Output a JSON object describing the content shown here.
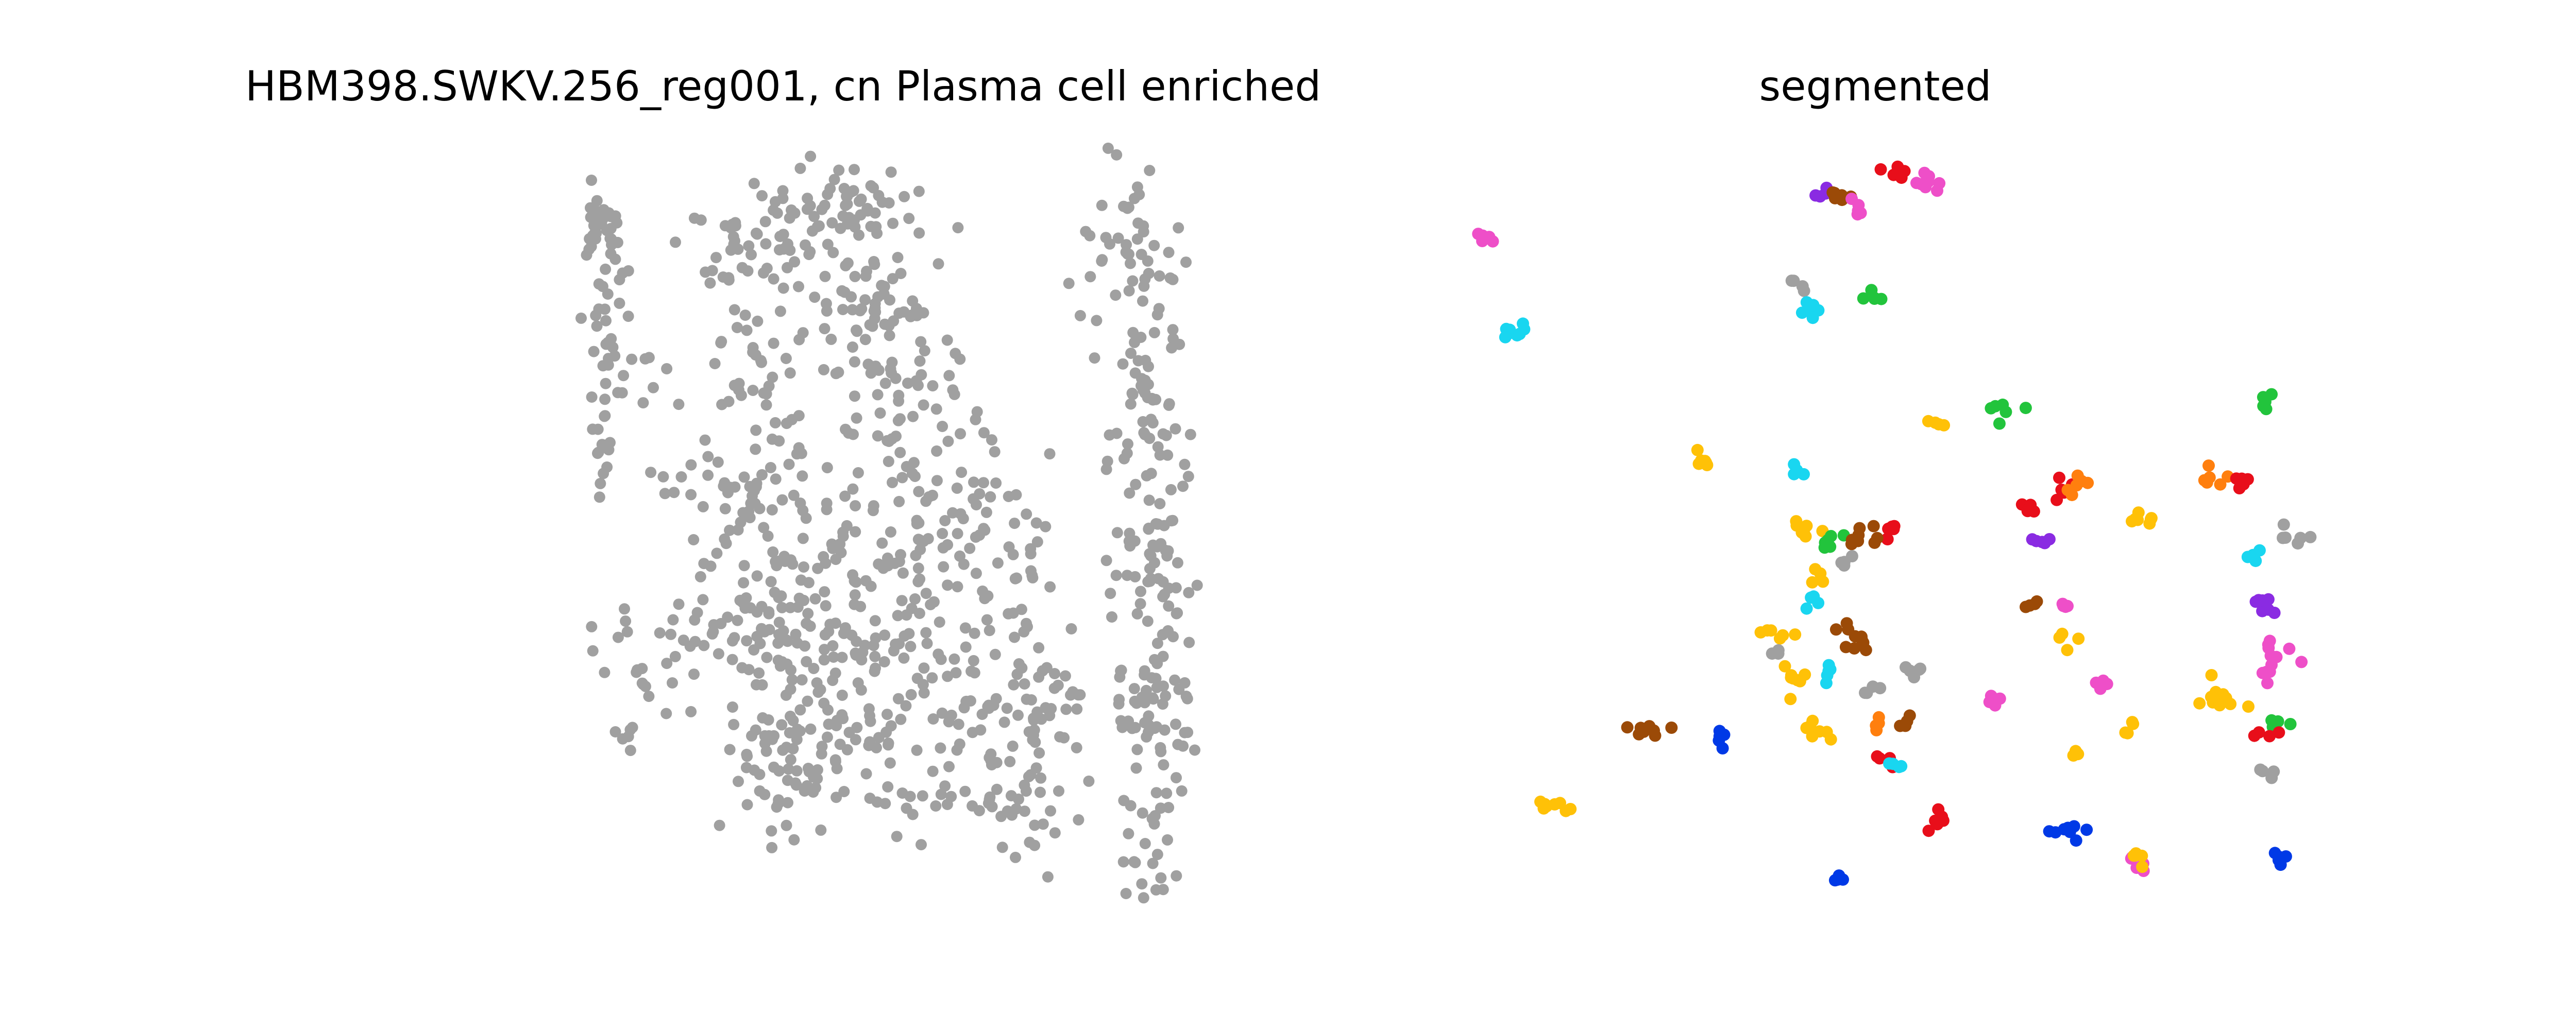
{
  "figure": {
    "background": "#ffffff",
    "axes_visible": false
  },
  "chart_data": [
    {
      "type": "scatter",
      "title": "HBM398.SWKV.256_reg001, cn Plasma cell enriched",
      "xlabel": "",
      "ylabel": "",
      "grid": false,
      "legend": "none",
      "point_color": "#a0a0a0",
      "clusters": [
        {
          "x": 69,
          "y": 12,
          "n": 30,
          "spread": [
            3,
            2
          ]
        },
        {
          "x": 70,
          "y": 27,
          "n": 35,
          "spread": [
            3,
            8
          ]
        },
        {
          "x": 69,
          "y": 45,
          "n": 14,
          "spread": [
            2,
            6
          ]
        },
        {
          "x": 72,
          "y": 80,
          "n": 8,
          "spread": [
            3,
            4
          ]
        },
        {
          "x": 73,
          "y": 93,
          "n": 6,
          "spread": [
            3,
            2
          ]
        },
        {
          "x": 83,
          "y": 35,
          "n": 5,
          "spread": [
            2,
            3
          ]
        },
        {
          "x": 87,
          "y": 55,
          "n": 6,
          "spread": [
            3,
            2
          ]
        },
        {
          "x": 85,
          "y": 87,
          "n": 8,
          "spread": [
            4,
            3
          ]
        },
        {
          "x": 98,
          "y": 50,
          "n": 5,
          "spread": [
            3,
            4
          ]
        },
        {
          "x": 96,
          "y": 80,
          "n": 22,
          "spread": [
            6,
            4
          ]
        },
        {
          "x": 96,
          "y": 70,
          "n": 6,
          "spread": [
            3,
            3
          ]
        },
        {
          "x": 112,
          "y": 15,
          "n": 60,
          "spread": [
            10,
            5
          ]
        },
        {
          "x": 110,
          "y": 35,
          "n": 30,
          "spread": [
            8,
            8
          ]
        },
        {
          "x": 117,
          "y": 55,
          "n": 60,
          "spread": [
            9,
            8
          ]
        },
        {
          "x": 118,
          "y": 75,
          "n": 70,
          "spread": [
            9,
            6
          ]
        },
        {
          "x": 123,
          "y": 95,
          "n": 30,
          "spread": [
            8,
            6
          ]
        },
        {
          "x": 118,
          "y": 102,
          "n": 45,
          "spread": [
            8,
            6
          ]
        },
        {
          "x": 140,
          "y": 10,
          "n": 55,
          "spread": [
            9,
            4
          ]
        },
        {
          "x": 145,
          "y": 26,
          "n": 55,
          "spread": [
            10,
            7
          ]
        },
        {
          "x": 152,
          "y": 42,
          "n": 45,
          "spread": [
            10,
            8
          ]
        },
        {
          "x": 153,
          "y": 62,
          "n": 60,
          "spread": [
            12,
            7
          ]
        },
        {
          "x": 150,
          "y": 82,
          "n": 65,
          "spread": [
            12,
            7
          ]
        },
        {
          "x": 145,
          "y": 100,
          "n": 50,
          "spread": [
            12,
            8
          ]
        },
        {
          "x": 168,
          "y": 60,
          "n": 30,
          "spread": [
            8,
            9
          ]
        },
        {
          "x": 172,
          "y": 85,
          "n": 20,
          "spread": [
            8,
            8
          ]
        },
        {
          "x": 175,
          "y": 102,
          "n": 25,
          "spread": [
            8,
            6
          ]
        },
        {
          "x": 185,
          "y": 68,
          "n": 25,
          "spread": [
            5,
            8
          ]
        },
        {
          "x": 190,
          "y": 93,
          "n": 45,
          "spread": [
            6,
            7
          ]
        },
        {
          "x": 188,
          "y": 110,
          "n": 20,
          "spread": [
            8,
            4
          ]
        },
        {
          "x": 215,
          "y": 15,
          "n": 40,
          "spread": [
            6,
            8
          ]
        },
        {
          "x": 220,
          "y": 40,
          "n": 60,
          "spread": [
            6,
            10
          ]
        },
        {
          "x": 222,
          "y": 65,
          "n": 60,
          "spread": [
            6,
            10
          ]
        },
        {
          "x": 222,
          "y": 92,
          "n": 60,
          "spread": [
            6,
            8
          ]
        },
        {
          "x": 222,
          "y": 115,
          "n": 25,
          "spread": [
            4,
            6
          ]
        }
      ],
      "xlim": [
        0,
        237
      ],
      "ylim": [
        0,
        121
      ]
    },
    {
      "type": "scatter",
      "title": "segmented",
      "xlabel": "",
      "ylabel": "",
      "grid": false,
      "legend": "none",
      "clusters": [
        {
          "x": 5,
          "y": 15,
          "n": 6,
          "spread": [
            1.0,
            0.8
          ],
          "color": "#ee4fc8"
        },
        {
          "x": 10,
          "y": 31,
          "n": 8,
          "spread": [
            1.2,
            0.9
          ],
          "color": "#19d6f0"
        },
        {
          "x": 57,
          "y": 23,
          "n": 4,
          "spread": [
            1.0,
            0.6
          ],
          "color": "#a0a0a0"
        },
        {
          "x": 61,
          "y": 8,
          "n": 4,
          "spread": [
            0.8,
            0.6
          ],
          "color": "#8a2be2"
        },
        {
          "x": 64,
          "y": 8,
          "n": 6,
          "spread": [
            1.2,
            0.7
          ],
          "color": "#9b4a07"
        },
        {
          "x": 68,
          "y": 11,
          "n": 5,
          "spread": [
            1.0,
            0.7
          ],
          "color": "#ee4fc8"
        },
        {
          "x": 74,
          "y": 4,
          "n": 6,
          "spread": [
            1.2,
            0.8
          ],
          "color": "#e80e1a"
        },
        {
          "x": 79,
          "y": 6,
          "n": 8,
          "spread": [
            1.3,
            1.0
          ],
          "color": "#ee4fc8"
        },
        {
          "x": 70,
          "y": 25,
          "n": 5,
          "spread": [
            1.0,
            0.7
          ],
          "color": "#22c43c"
        },
        {
          "x": 59,
          "y": 27,
          "n": 6,
          "spread": [
            0.8,
            1.2
          ],
          "color": "#19d6f0"
        },
        {
          "x": 80,
          "y": 46,
          "n": 4,
          "spread": [
            1.0,
            0.6
          ],
          "color": "#ffc107"
        },
        {
          "x": 91,
          "y": 44,
          "n": 6,
          "spread": [
            1.4,
            0.8
          ],
          "color": "#22c43c"
        },
        {
          "x": 135,
          "y": 42,
          "n": 5,
          "spread": [
            1.0,
            0.8
          ],
          "color": "#22c43c"
        },
        {
          "x": 41,
          "y": 54,
          "n": 6,
          "spread": [
            0.8,
            1.4
          ],
          "color": "#ffc107"
        },
        {
          "x": 57,
          "y": 54,
          "n": 4,
          "spread": [
            0.8,
            0.8
          ],
          "color": "#19d6f0"
        },
        {
          "x": 58,
          "y": 63,
          "n": 8,
          "spread": [
            1.3,
            1.0
          ],
          "color": "#ffc107"
        },
        {
          "x": 102,
          "y": 57,
          "n": 6,
          "spread": [
            1.3,
            0.8
          ],
          "color": "#e80e1a"
        },
        {
          "x": 103,
          "y": 56,
          "n": 6,
          "spread": [
            1.5,
            0.8
          ],
          "color": "#ff7f0e"
        },
        {
          "x": 115,
          "y": 62,
          "n": 7,
          "spread": [
            1.5,
            0.6
          ],
          "color": "#ffc107"
        },
        {
          "x": 126,
          "y": 55,
          "n": 6,
          "spread": [
            1.2,
            0.8
          ],
          "color": "#ff7f0e"
        },
        {
          "x": 131,
          "y": 56,
          "n": 5,
          "spread": [
            1.0,
            0.7
          ],
          "color": "#e80e1a"
        },
        {
          "x": 97,
          "y": 60,
          "n": 6,
          "spread": [
            1.2,
            1.0
          ],
          "color": "#e80e1a"
        },
        {
          "x": 98,
          "y": 66,
          "n": 5,
          "spread": [
            1.0,
            0.7
          ],
          "color": "#8a2be2"
        },
        {
          "x": 73,
          "y": 64,
          "n": 6,
          "spread": [
            1.0,
            0.8
          ],
          "color": "#e80e1a"
        },
        {
          "x": 63,
          "y": 66,
          "n": 6,
          "spread": [
            1.4,
            0.8
          ],
          "color": "#22c43c"
        },
        {
          "x": 68,
          "y": 65,
          "n": 8,
          "spread": [
            1.4,
            0.8
          ],
          "color": "#9b4a07"
        },
        {
          "x": 61,
          "y": 71,
          "n": 4,
          "spread": [
            0.7,
            0.7
          ],
          "color": "#ffc107"
        },
        {
          "x": 65,
          "y": 69,
          "n": 4,
          "spread": [
            0.7,
            0.7
          ],
          "color": "#a0a0a0"
        },
        {
          "x": 60,
          "y": 76,
          "n": 4,
          "spread": [
            0.8,
            0.8
          ],
          "color": "#19d6f0"
        },
        {
          "x": 140,
          "y": 65,
          "n": 6,
          "spread": [
            1.5,
            1.0
          ],
          "color": "#a0a0a0"
        },
        {
          "x": 133,
          "y": 69,
          "n": 5,
          "spread": [
            1.0,
            0.8
          ],
          "color": "#19d6f0"
        },
        {
          "x": 135,
          "y": 77,
          "n": 8,
          "spread": [
            1.2,
            1.0
          ],
          "color": "#8a2be2"
        },
        {
          "x": 96,
          "y": 76,
          "n": 4,
          "spread": [
            0.8,
            0.8
          ],
          "color": "#9b4a07"
        },
        {
          "x": 102,
          "y": 76,
          "n": 4,
          "spread": [
            0.7,
            0.7
          ],
          "color": "#ee4fc8"
        },
        {
          "x": 53,
          "y": 81,
          "n": 6,
          "spread": [
            2.0,
            0.7
          ],
          "color": "#ffc107"
        },
        {
          "x": 67,
          "y": 82,
          "n": 10,
          "spread": [
            1.5,
            1.2
          ],
          "color": "#9b4a07"
        },
        {
          "x": 54,
          "y": 84,
          "n": 4,
          "spread": [
            0.8,
            0.6
          ],
          "color": "#a0a0a0"
        },
        {
          "x": 102,
          "y": 82,
          "n": 4,
          "spread": [
            0.7,
            0.7
          ],
          "color": "#ffc107"
        },
        {
          "x": 137,
          "y": 84,
          "n": 8,
          "spread": [
            1.5,
            1.0
          ],
          "color": "#ee4fc8"
        },
        {
          "x": 135,
          "y": 88,
          "n": 4,
          "spread": [
            0.7,
            0.8
          ],
          "color": "#ee4fc8"
        },
        {
          "x": 56,
          "y": 89,
          "n": 8,
          "spread": [
            1.3,
            1.0
          ],
          "color": "#ffc107"
        },
        {
          "x": 62,
          "y": 88,
          "n": 5,
          "spread": [
            1.0,
            0.8
          ],
          "color": "#19d6f0"
        },
        {
          "x": 76,
          "y": 87,
          "n": 5,
          "spread": [
            1.2,
            0.8
          ],
          "color": "#a0a0a0"
        },
        {
          "x": 70,
          "y": 90,
          "n": 4,
          "spread": [
            0.8,
            0.7
          ],
          "color": "#a0a0a0"
        },
        {
          "x": 90,
          "y": 92,
          "n": 6,
          "spread": [
            1.2,
            0.8
          ],
          "color": "#ee4fc8"
        },
        {
          "x": 108,
          "y": 90,
          "n": 4,
          "spread": [
            0.8,
            0.8
          ],
          "color": "#ee4fc8"
        },
        {
          "x": 127,
          "y": 91,
          "n": 12,
          "spread": [
            2.0,
            2.0
          ],
          "color": "#ffc107"
        },
        {
          "x": 112,
          "y": 97,
          "n": 4,
          "spread": [
            0.8,
            0.8
          ],
          "color": "#ffc107"
        },
        {
          "x": 137,
          "y": 96,
          "n": 6,
          "spread": [
            1.0,
            1.0
          ],
          "color": "#22c43c"
        },
        {
          "x": 135,
          "y": 98,
          "n": 4,
          "spread": [
            0.8,
            0.6
          ],
          "color": "#e80e1a"
        },
        {
          "x": 32,
          "y": 97,
          "n": 8,
          "spread": [
            2.0,
            0.6
          ],
          "color": "#9b4a07"
        },
        {
          "x": 45,
          "y": 98,
          "n": 5,
          "spread": [
            1.0,
            1.0
          ],
          "color": "#0039e6"
        },
        {
          "x": 60,
          "y": 98,
          "n": 8,
          "spread": [
            1.5,
            0.8
          ],
          "color": "#ffc107"
        },
        {
          "x": 71,
          "y": 96,
          "n": 4,
          "spread": [
            0.7,
            0.7
          ],
          "color": "#ff7f0e"
        },
        {
          "x": 75,
          "y": 96,
          "n": 4,
          "spread": [
            0.7,
            0.7
          ],
          "color": "#9b4a07"
        },
        {
          "x": 72,
          "y": 102,
          "n": 4,
          "spread": [
            0.8,
            0.7
          ],
          "color": "#e80e1a"
        },
        {
          "x": 74,
          "y": 103,
          "n": 4,
          "spread": [
            0.8,
            0.7
          ],
          "color": "#19d6f0"
        },
        {
          "x": 104,
          "y": 101,
          "n": 4,
          "spread": [
            0.7,
            0.7
          ],
          "color": "#ffc107"
        },
        {
          "x": 135,
          "y": 104,
          "n": 4,
          "spread": [
            0.8,
            0.6
          ],
          "color": "#a0a0a0"
        },
        {
          "x": 17,
          "y": 110,
          "n": 8,
          "spread": [
            1.8,
            0.7
          ],
          "color": "#ffc107"
        },
        {
          "x": 80,
          "y": 112,
          "n": 6,
          "spread": [
            1.0,
            0.8
          ],
          "color": "#e80e1a"
        },
        {
          "x": 102,
          "y": 114,
          "n": 8,
          "spread": [
            1.5,
            0.8
          ],
          "color": "#0039e6"
        },
        {
          "x": 113,
          "y": 119,
          "n": 5,
          "spread": [
            1.0,
            0.7
          ],
          "color": "#ee4fc8"
        },
        {
          "x": 115,
          "y": 118,
          "n": 6,
          "spread": [
            1.0,
            0.7
          ],
          "color": "#ffc107"
        },
        {
          "x": 137,
          "y": 119,
          "n": 6,
          "spread": [
            0.8,
            1.0
          ],
          "color": "#0039e6"
        },
        {
          "x": 64,
          "y": 122,
          "n": 4,
          "spread": [
            0.8,
            0.5
          ],
          "color": "#0039e6"
        }
      ],
      "xlim": [
        0,
        142
      ],
      "ylim": [
        0,
        126
      ]
    }
  ]
}
